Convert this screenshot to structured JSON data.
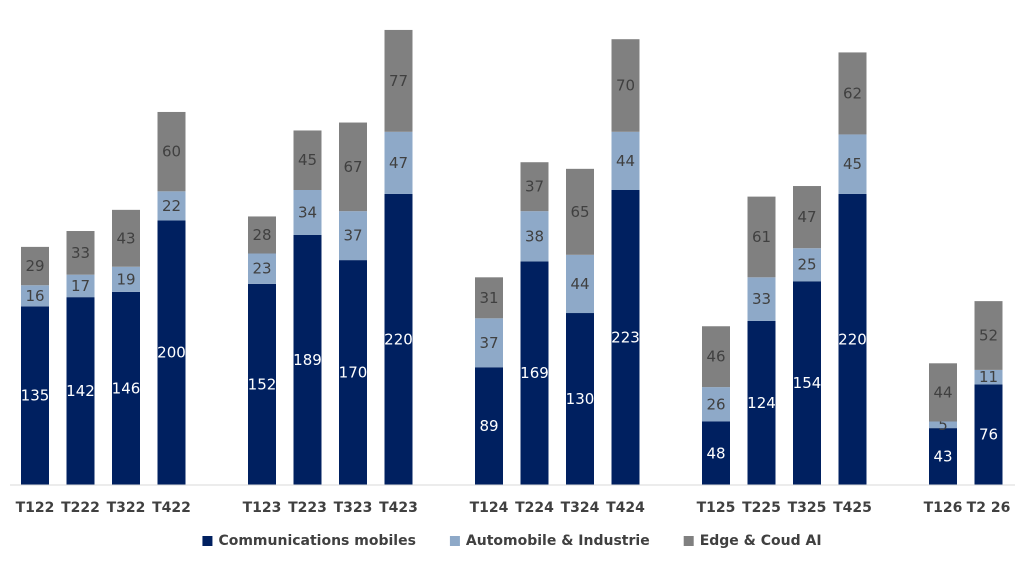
{
  "chart_data": {
    "type": "bar",
    "stacked": true,
    "categories": [
      "T122",
      "T222",
      "T322",
      "T422",
      "T123",
      "T223",
      "T323",
      "T423",
      "T124",
      "T224",
      "T324",
      "T424",
      "T125",
      "T225",
      "T325",
      "T425",
      "T126",
      "T2 26"
    ],
    "groups": [
      [
        "T122",
        "T222",
        "T322",
        "T422"
      ],
      [
        "T123",
        "T223",
        "T323",
        "T423"
      ],
      [
        "T124",
        "T224",
        "T324",
        "T424"
      ],
      [
        "T125",
        "T225",
        "T325",
        "T425"
      ],
      [
        "T126",
        "T2 26"
      ]
    ],
    "series": [
      {
        "name": "Communications mobiles",
        "color": "#002060",
        "label_color": "#ffffff",
        "values": [
          135,
          142,
          146,
          200,
          152,
          189,
          170,
          220,
          89,
          169,
          130,
          223,
          48,
          124,
          154,
          220,
          43,
          76
        ]
      },
      {
        "name": "Automobile & Industrie",
        "color": "#8EA9C8",
        "label_color": "#404040",
        "values": [
          16,
          17,
          19,
          22,
          23,
          34,
          37,
          47,
          37,
          38,
          44,
          44,
          26,
          33,
          25,
          45,
          5,
          11
        ]
      },
      {
        "name": "Edge & Coud AI",
        "color": "#808080",
        "label_color": "#404040",
        "values": [
          29,
          33,
          43,
          60,
          28,
          45,
          67,
          77,
          31,
          37,
          65,
          70,
          46,
          61,
          47,
          62,
          44,
          52
        ]
      }
    ],
    "ylim": [
      0,
      350
    ],
    "grid": false,
    "legend_position": "bottom"
  }
}
